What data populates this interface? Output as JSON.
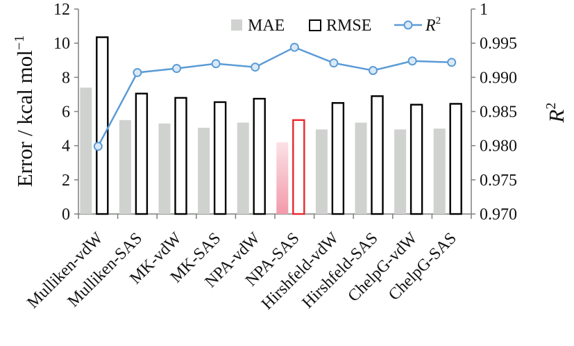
{
  "chart_data": {
    "type": "bar",
    "categories": [
      "Mulliken-vdW",
      "Mulliken-SAS",
      "MK-vdW",
      "MK-SAS",
      "NPA-vdW",
      "NPA-SAS",
      "Hirshfeld-vdW",
      "Hirshfeld-SAS",
      "ChelpG-vdW",
      "ChelpG-SAS"
    ],
    "series": [
      {
        "name": "MAE",
        "axis": "left",
        "kind": "bar",
        "color": "#cfd2cf",
        "values": [
          7.4,
          5.5,
          5.3,
          5.05,
          5.35,
          4.2,
          4.95,
          5.35,
          4.95,
          5.0
        ]
      },
      {
        "name": "RMSE",
        "axis": "left",
        "kind": "bar",
        "color": "#000000",
        "values": [
          10.35,
          7.05,
          6.8,
          6.55,
          6.75,
          5.5,
          6.5,
          6.9,
          6.4,
          6.45
        ]
      },
      {
        "name": "R2",
        "axis": "right",
        "kind": "line",
        "color": "#5b9bd5",
        "values": [
          0.9799,
          0.9907,
          0.9913,
          0.992,
          0.9915,
          0.9944,
          0.9921,
          0.991,
          0.9924,
          0.9922
        ]
      }
    ],
    "highlight": {
      "category": "NPA-SAS",
      "mae_color": "#f29aaa",
      "rmse_color": "#e8262f"
    },
    "legend": {
      "position": "top-right",
      "mae": "MAE",
      "rmse": "RMSE",
      "r2_base": "R",
      "r2_sup": "2"
    },
    "y_left": {
      "label_main": "Error / kcal mol",
      "label_sup": "−1",
      "ylim": [
        0,
        12
      ],
      "ticks": [
        0,
        2,
        4,
        6,
        8,
        10,
        12
      ],
      "tick_labels": [
        "0",
        "2",
        "4",
        "6",
        "8",
        "10",
        "12"
      ]
    },
    "y_right": {
      "label_base": "R",
      "label_sup": "2",
      "ylim": [
        0.97,
        1.0
      ],
      "ticks": [
        0.97,
        0.975,
        0.98,
        0.985,
        0.99,
        0.995,
        1.0
      ],
      "tick_labels": [
        "0.970",
        "0.975",
        "0.980",
        "0.985",
        "0.990",
        "0.995",
        "1"
      ]
    },
    "grid": false
  }
}
